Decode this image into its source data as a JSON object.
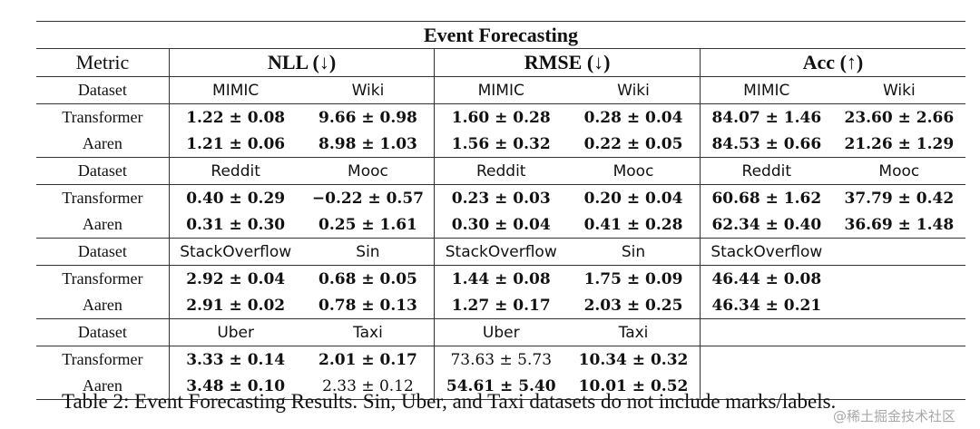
{
  "table": {
    "title": "Event Forecasting",
    "metric_label": "Metric",
    "metrics": [
      "NLL (↓)",
      "RMSE (↓)",
      "Acc (↑)"
    ],
    "groups": [
      {
        "label": "Dataset",
        "datasets": [
          "MIMIC",
          "Wiki",
          "MIMIC",
          "Wiki",
          "MIMIC",
          "Wiki"
        ],
        "rows": [
          {
            "name": "Transformer",
            "values": [
              "1.22 ± 0.08",
              "9.66 ± 0.98",
              "1.60 ± 0.28",
              "0.28 ± 0.04",
              "84.07 ± 1.46",
              "23.60 ± 2.66"
            ],
            "bold": [
              true,
              true,
              true,
              true,
              true,
              true
            ]
          },
          {
            "name": "Aaren",
            "values": [
              "1.21 ± 0.06",
              "8.98 ± 1.03",
              "1.56 ± 0.32",
              "0.22 ± 0.05",
              "84.53 ± 0.66",
              "21.26 ± 1.29"
            ],
            "bold": [
              true,
              true,
              true,
              true,
              true,
              true
            ]
          }
        ]
      },
      {
        "label": "Dataset",
        "datasets": [
          "Reddit",
          "Mooc",
          "Reddit",
          "Mooc",
          "Reddit",
          "Mooc"
        ],
        "rows": [
          {
            "name": "Transformer",
            "values": [
              "0.40 ± 0.29",
              "−0.22 ± 0.57",
              "0.23 ± 0.03",
              "0.20 ± 0.04",
              "60.68 ± 1.62",
              "37.79 ± 0.42"
            ],
            "bold": [
              true,
              true,
              true,
              true,
              true,
              true
            ]
          },
          {
            "name": "Aaren",
            "values": [
              "0.31 ± 0.30",
              "0.25 ± 1.61",
              "0.30 ± 0.04",
              "0.41 ± 0.28",
              "62.34 ± 0.40",
              "36.69 ± 1.48"
            ],
            "bold": [
              true,
              true,
              true,
              true,
              true,
              true
            ]
          }
        ]
      },
      {
        "label": "Dataset",
        "datasets": [
          "StackOverflow",
          "Sin",
          "StackOverflow",
          "Sin",
          "StackOverflow",
          ""
        ],
        "rows": [
          {
            "name": "Transformer",
            "values": [
              "2.92 ± 0.04",
              "0.68 ± 0.05",
              "1.44 ± 0.08",
              "1.75 ± 0.09",
              "46.44 ± 0.08",
              ""
            ],
            "bold": [
              true,
              true,
              true,
              true,
              true,
              false
            ]
          },
          {
            "name": "Aaren",
            "values": [
              "2.91 ± 0.02",
              "0.78 ± 0.13",
              "1.27 ± 0.17",
              "2.03 ± 0.25",
              "46.34 ± 0.21",
              ""
            ],
            "bold": [
              true,
              true,
              true,
              true,
              true,
              false
            ]
          }
        ]
      },
      {
        "label": "Dataset",
        "datasets": [
          "Uber",
          "Taxi",
          "Uber",
          "Taxi",
          "",
          ""
        ],
        "rows": [
          {
            "name": "Transformer",
            "values": [
              "3.33 ± 0.14",
              "2.01 ± 0.17",
              "73.63 ± 5.73",
              "10.34 ± 0.32",
              "",
              ""
            ],
            "bold": [
              true,
              true,
              false,
              true,
              false,
              false
            ]
          },
          {
            "name": "Aaren",
            "values": [
              "3.48 ± 0.10",
              "2.33 ± 0.12",
              "54.61 ± 5.40",
              "10.01 ± 0.52",
              "",
              ""
            ],
            "bold": [
              true,
              false,
              true,
              true,
              false,
              false
            ]
          }
        ]
      }
    ]
  },
  "caption": "Table 2: Event Forecasting Results. Sin, Uber, and Taxi datasets do not include marks/labels.",
  "watermark": "@稀土掘金技术社区"
}
